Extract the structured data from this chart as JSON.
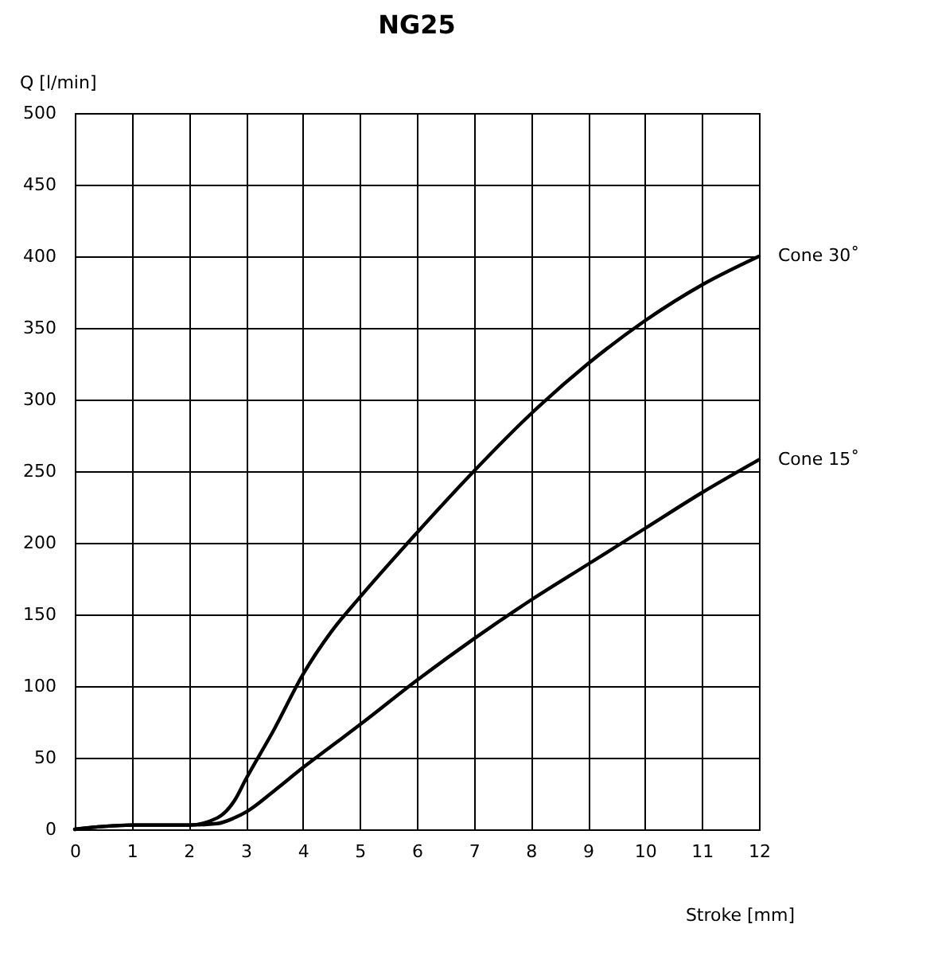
{
  "chart_data": {
    "type": "line",
    "title": "NG25",
    "xlabel": "Stroke [mm]",
    "ylabel": "Q [l/min]",
    "xlim": [
      0,
      12
    ],
    "xticks": [
      0,
      1,
      2,
      3,
      4,
      5,
      6,
      7,
      8,
      9,
      10,
      11,
      12
    ],
    "ylim": [
      0,
      500
    ],
    "yticks": [
      0,
      50,
      100,
      150,
      200,
      250,
      300,
      350,
      400,
      450,
      500
    ],
    "grid": true,
    "line_style": "solid",
    "x": [
      0,
      0.5,
      1,
      2,
      2.5,
      2.8,
      3,
      3.5,
      4,
      4.5,
      5,
      6,
      7,
      8,
      9,
      10,
      11,
      12
    ],
    "series": [
      {
        "name": "Cone 30˚",
        "color": "#000000",
        "values": [
          0,
          2,
          3,
          3,
          8,
          20,
          35,
          70,
          108,
          138,
          162,
          207,
          250,
          290,
          325,
          355,
          380,
          400
        ]
      },
      {
        "name": "Cone 15˚",
        "color": "#000000",
        "values": [
          0,
          2,
          3,
          3,
          4,
          8,
          12,
          27,
          43,
          58,
          73,
          104,
          133,
          160,
          185,
          210,
          235,
          258
        ]
      }
    ]
  }
}
